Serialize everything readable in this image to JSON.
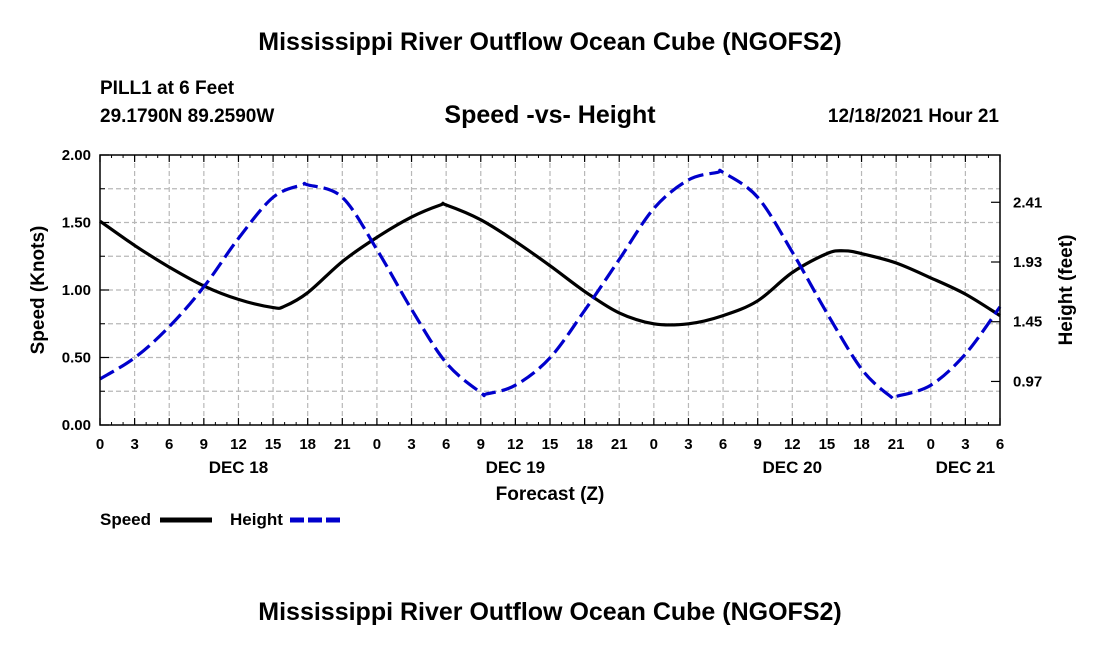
{
  "header": {
    "title": "Mississippi River Outflow Ocean Cube (NGOFS2)",
    "station": "PILL1 at 6 Feet",
    "coordinates": "29.1790N  89.2590W",
    "subtitle": "Speed -vs- Height",
    "datetime": "12/18/2021 Hour 21"
  },
  "footer": {
    "title": "Mississippi River Outflow Ocean Cube (NGOFS2)"
  },
  "legend": {
    "speed_label": "Speed",
    "height_label": "Height"
  },
  "colors": {
    "speed": "#000000",
    "height": "#0000cc",
    "grid": "#b8b8b8"
  },
  "chart_data": {
    "type": "line",
    "xlabel": "Forecast (Z)",
    "ylabel_left": "Speed (Knots)",
    "ylabel_right": "Height (feet)",
    "x_unit": "hours from DEC 18 00Z",
    "xlim": [
      0,
      78
    ],
    "ylim_left": [
      0.0,
      2.0
    ],
    "ylim_right": [
      0.62,
      2.79
    ],
    "yticks_left": [
      0.0,
      0.5,
      1.0,
      1.5,
      2.0
    ],
    "ytick_labels_left": [
      "0.00",
      "0.50",
      "1.00",
      "1.50",
      "2.00"
    ],
    "yticks_right": [
      0.97,
      1.45,
      1.93,
      2.41
    ],
    "ytick_labels_right": [
      "0.97",
      "1.45",
      "1.93",
      "2.41"
    ],
    "xticks": [
      0,
      3,
      6,
      9,
      12,
      15,
      18,
      21,
      24,
      27,
      30,
      33,
      36,
      39,
      42,
      45,
      48,
      51,
      54,
      57,
      60,
      63,
      66,
      69,
      72,
      75,
      78
    ],
    "xtick_labels": [
      "0",
      "3",
      "6",
      "9",
      "12",
      "15",
      "18",
      "21",
      "0",
      "3",
      "6",
      "9",
      "12",
      "15",
      "18",
      "21",
      "0",
      "3",
      "6",
      "9",
      "12",
      "15",
      "18",
      "21",
      "0",
      "3",
      "6"
    ],
    "day_labels": [
      {
        "hour": 12,
        "label": "DEC 18"
      },
      {
        "hour": 36,
        "label": "DEC 19"
      },
      {
        "hour": 60,
        "label": "DEC 20"
      },
      {
        "hour": 75,
        "label": "DEC 21"
      }
    ],
    "grid": true,
    "series": [
      {
        "name": "Speed",
        "axis": "left",
        "style": "solid",
        "x": [
          0,
          3,
          6,
          9,
          12,
          15,
          16,
          18,
          21,
          24,
          27,
          29.5,
          30,
          33,
          36,
          39,
          42,
          45,
          48,
          51,
          54,
          57,
          60,
          63,
          64.5,
          66,
          69,
          72,
          75,
          78
        ],
        "values": [
          1.51,
          1.33,
          1.17,
          1.03,
          0.93,
          0.87,
          0.88,
          0.98,
          1.21,
          1.39,
          1.54,
          1.63,
          1.63,
          1.52,
          1.36,
          1.18,
          0.99,
          0.83,
          0.75,
          0.75,
          0.81,
          0.92,
          1.13,
          1.27,
          1.29,
          1.27,
          1.2,
          1.09,
          0.97,
          0.81
        ]
      },
      {
        "name": "Height",
        "axis": "right",
        "style": "dashed",
        "x": [
          0,
          3,
          6,
          9,
          12,
          15,
          17.5,
          18,
          21,
          24,
          27,
          30,
          33,
          33.5,
          36,
          39,
          42,
          45,
          48,
          51,
          53.5,
          54,
          57,
          60,
          63,
          66,
          68.5,
          69,
          72,
          75,
          78
        ],
        "values": [
          0.99,
          1.16,
          1.41,
          1.73,
          2.12,
          2.45,
          2.55,
          2.55,
          2.45,
          2.03,
          1.55,
          1.12,
          0.88,
          0.87,
          0.94,
          1.16,
          1.54,
          1.95,
          2.36,
          2.59,
          2.65,
          2.65,
          2.45,
          2.01,
          1.52,
          1.07,
          0.85,
          0.85,
          0.94,
          1.19,
          1.57
        ]
      }
    ]
  }
}
